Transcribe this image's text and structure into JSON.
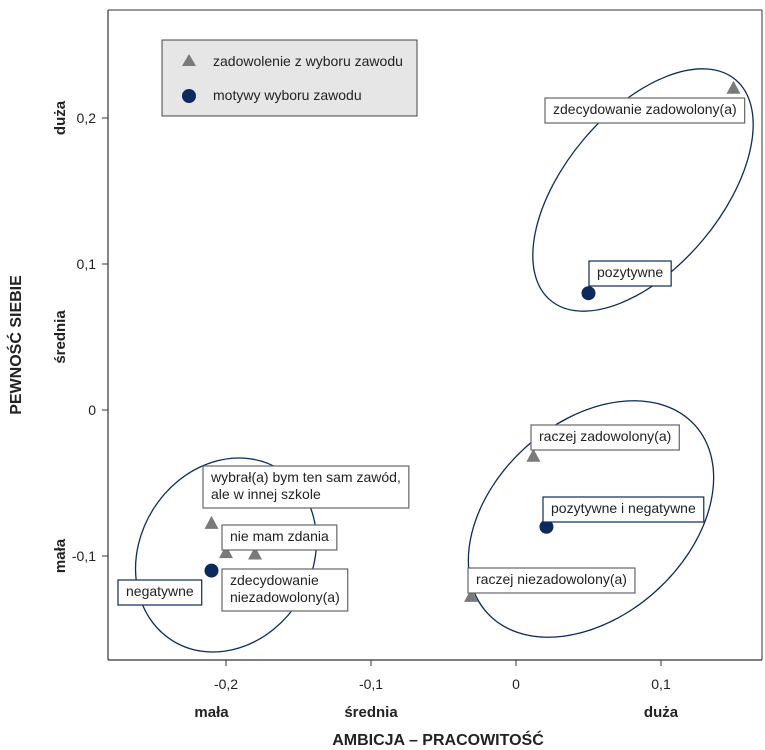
{
  "chart_data": {
    "type": "scatter",
    "title": "",
    "xlabel": "AMBICJA – PRACOWITOŚĆ",
    "ylabel": "PEWNOŚĆ  SIEBIE",
    "xlim": [
      -0.27,
      0.16
    ],
    "ylim": [
      -0.17,
      0.27
    ],
    "x_ticks": [
      {
        "v": -0.2,
        "t": "-0,2"
      },
      {
        "v": -0.1,
        "t": "-0,1"
      },
      {
        "v": 0,
        "t": "0"
      },
      {
        "v": 0.1,
        "t": "0,1"
      }
    ],
    "y_ticks": [
      {
        "v": -0.1,
        "t": "-0,1"
      },
      {
        "v": 0,
        "t": "0"
      },
      {
        "v": 0.1,
        "t": "0,1"
      },
      {
        "v": 0.2,
        "t": "0,2"
      }
    ],
    "x_categories": [
      {
        "v": -0.21,
        "t": "mała"
      },
      {
        "v": -0.1,
        "t": "średnia"
      },
      {
        "v": 0.1,
        "t": "duża"
      }
    ],
    "y_categories": [
      {
        "v": 0.2,
        "t": "duża"
      },
      {
        "v": 0.05,
        "t": "średnia"
      },
      {
        "v": -0.1,
        "t": "mała"
      }
    ],
    "grid": false,
    "legend_position": "top-left",
    "series": [
      {
        "name": "zadowolenie z wyboru zawodu",
        "marker": "triangle",
        "color": "#7a7a7a",
        "points": [
          {
            "x": 0.15,
            "y": 0.22,
            "label": [
              "zdecydowanie zadowolony(a)"
            ]
          },
          {
            "x": 0.012,
            "y": -0.032,
            "label": [
              "raczej zadowolony(a)"
            ]
          },
          {
            "x": -0.031,
            "y": -0.128,
            "label": [
              "raczej niezadowolony(a)"
            ]
          },
          {
            "x": -0.21,
            "y": -0.078,
            "label": [
              "wybrał(a) bym ten sam zawód,",
              "ale w innej szkole"
            ]
          },
          {
            "x": -0.18,
            "y": -0.099,
            "label": [
              "nie mam zdania"
            ]
          },
          {
            "x": -0.2,
            "y": -0.098,
            "label": [
              "zdecydowanie",
              "niezadowolony(a)"
            ]
          }
        ]
      },
      {
        "name": "motywy wyboru zawodu",
        "marker": "circle",
        "color": "#0d2a5c",
        "points": [
          {
            "x": 0.05,
            "y": 0.08,
            "label": [
              "pozytywne"
            ]
          },
          {
            "x": 0.021,
            "y": -0.08,
            "label": [
              "pozytywne i negatywne"
            ]
          },
          {
            "x": -0.21,
            "y": -0.11,
            "label": [
              "negatywne"
            ]
          }
        ]
      }
    ]
  }
}
